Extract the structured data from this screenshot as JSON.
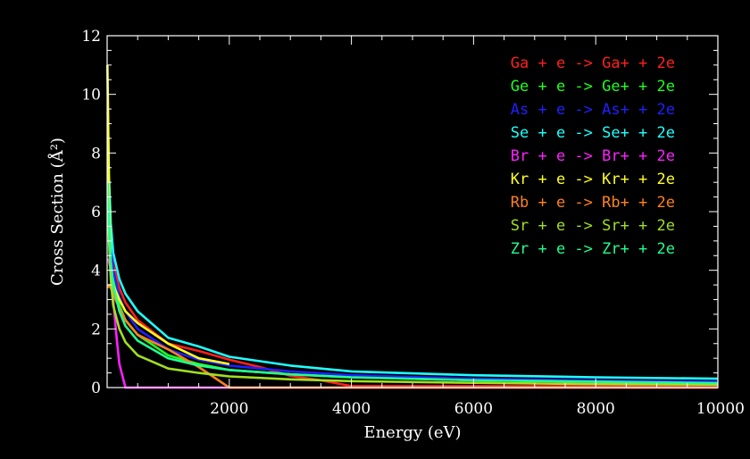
{
  "chart_data": {
    "type": "line",
    "title": "",
    "xlabel": "Energy (eV)",
    "ylabel": "Cross Section (Å²)",
    "xlim": [
      0,
      10000
    ],
    "ylim": [
      0,
      12
    ],
    "x_ticks": [
      2000,
      4000,
      6000,
      8000,
      10000
    ],
    "x_tick_labels": [
      "2000",
      "4000",
      "6000",
      "8000",
      "10000"
    ],
    "y_ticks": [
      0,
      2,
      4,
      6,
      8,
      10,
      12
    ],
    "y_tick_labels": [
      "0",
      "2",
      "4",
      "6",
      "8",
      "10",
      "12"
    ],
    "grid": false,
    "legend_position": "top-right",
    "series": [
      {
        "name": "Ga + e -> Ga+ + 2e",
        "color": "#ff2020",
        "x": [
          10,
          30,
          60,
          100,
          200,
          300,
          500,
          1000,
          1500,
          2000,
          2500,
          3000,
          3500,
          4000,
          10000
        ],
        "y": [
          9.0,
          6.8,
          5.2,
          4.2,
          3.4,
          2.9,
          2.3,
          1.5,
          1.25,
          0.95,
          0.7,
          0.4,
          0.25,
          0.05,
          0.05
        ]
      },
      {
        "name": "Ge + e -> Ge+ + 2e",
        "color": "#20ff20",
        "x": [
          10,
          30,
          60,
          100,
          200,
          300,
          500,
          1000,
          1500,
          2000,
          3000,
          4000,
          6000,
          8000,
          10000
        ],
        "y": [
          8.0,
          6.0,
          4.6,
          3.7,
          2.8,
          2.3,
          1.8,
          1.1,
          0.8,
          0.6,
          0.45,
          0.35,
          0.25,
          0.2,
          0.15
        ]
      },
      {
        "name": "As + e -> As+ + 2e",
        "color": "#2020ff",
        "x": [
          10,
          30,
          60,
          100,
          200,
          300,
          500,
          1000,
          1500,
          2000,
          3000,
          4000,
          6000,
          8000,
          10000
        ],
        "y": [
          7.8,
          6.2,
          4.8,
          4.0,
          3.1,
          2.6,
          2.0,
          1.3,
          0.95,
          0.75,
          0.55,
          0.42,
          0.3,
          0.24,
          0.2
        ]
      },
      {
        "name": "Se + e -> Se+ + 2e",
        "color": "#20ffff",
        "x": [
          10,
          30,
          60,
          100,
          200,
          300,
          500,
          1000,
          1500,
          2000,
          3000,
          4000,
          6000,
          8000,
          10000
        ],
        "y": [
          9.4,
          7.2,
          5.6,
          4.6,
          3.7,
          3.2,
          2.6,
          1.7,
          1.4,
          1.05,
          0.75,
          0.55,
          0.42,
          0.35,
          0.3
        ]
      },
      {
        "name": "Br + e -> Br+ + 2e",
        "color": "#ff20ff",
        "x": [
          20,
          60,
          100,
          150,
          200,
          300,
          1000,
          10000
        ],
        "y": [
          4.4,
          4.0,
          3.0,
          1.8,
          0.8,
          0.0,
          0.0,
          0.0
        ]
      },
      {
        "name": "Kr + e -> Kr+ + 2e",
        "color": "#ffff20",
        "x": [
          5,
          15,
          30,
          60,
          100,
          200,
          300,
          500,
          1000,
          1500,
          2000
        ],
        "y": [
          11.0,
          9.5,
          6.5,
          4.2,
          3.5,
          3.0,
          2.6,
          2.2,
          1.5,
          1.0,
          0.8
        ]
      },
      {
        "name": "Rb + e -> Rb+ + 2e",
        "color": "#ff8020",
        "x": [
          10,
          30,
          60,
          100,
          200,
          300,
          500,
          1000,
          1500,
          2000,
          4000,
          10000
        ],
        "y": [
          3.4,
          3.5,
          3.4,
          3.2,
          2.7,
          2.3,
          1.8,
          1.3,
          0.7,
          0.0,
          0.0,
          0.0
        ]
      },
      {
        "name": "Sr + e -> Sr+ + 2e",
        "color": "#a0e020",
        "x": [
          10,
          30,
          60,
          100,
          200,
          300,
          500,
          1000,
          1500,
          2000,
          3000,
          4000,
          6000,
          8000,
          10000
        ],
        "y": [
          6.4,
          5.0,
          3.7,
          2.8,
          2.0,
          1.55,
          1.1,
          0.65,
          0.5,
          0.38,
          0.28,
          0.22,
          0.16,
          0.12,
          0.1
        ]
      },
      {
        "name": "Zr + e -> Zr+ + 2e",
        "color": "#20ff90",
        "x": [
          10,
          30,
          60,
          100,
          200,
          300,
          500,
          1000,
          1500,
          2000,
          3000,
          4000,
          6000,
          8000,
          10000
        ],
        "y": [
          7.0,
          5.6,
          4.3,
          3.5,
          2.6,
          2.1,
          1.6,
          1.0,
          0.75,
          0.6,
          0.45,
          0.35,
          0.25,
          0.2,
          0.15
        ]
      }
    ]
  }
}
